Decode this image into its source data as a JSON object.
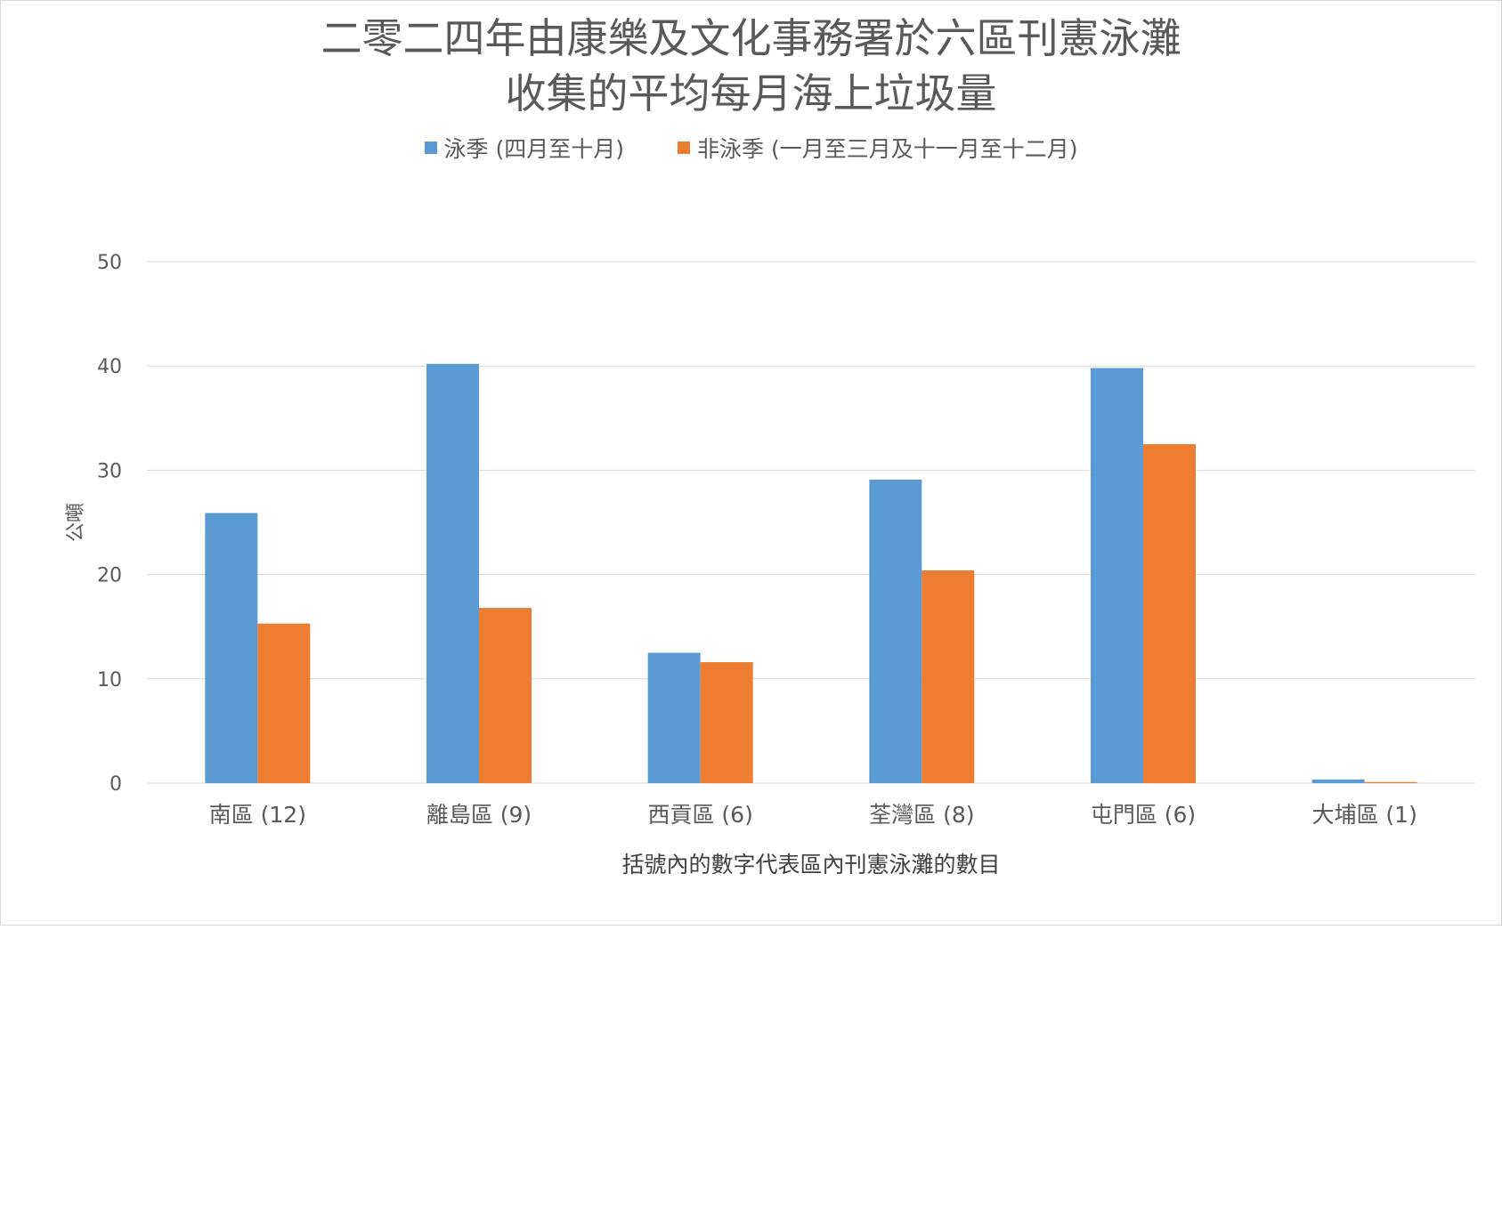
{
  "chart_data": {
    "type": "bar",
    "title": "二零二四年由康樂及文化事務署於六區刊憲泳灘收集的平均每月海上垃圾量",
    "title_lines": [
      "二零二四年由康樂及文化事務署於六區刊憲泳灘",
      "收集的平均每月海上垃圾量"
    ],
    "xlabel": "括號內的數字代表區內刊憲泳灘的數目",
    "ylabel": "公噸",
    "ylim": [
      0,
      50
    ],
    "yticks": [
      "0",
      "10",
      "20",
      "30",
      "40",
      "50"
    ],
    "grid": true,
    "legend_position": "top",
    "categories": [
      "南區 (12)",
      "離島區 (9)",
      "西貢區 (6)",
      "荃灣區 (8)",
      "屯門區 (6)",
      "大埔區 (1)"
    ],
    "series": [
      {
        "name": "泳季 (四月至十月)",
        "color": "#5b9bd5",
        "values": [
          25.9,
          40.2,
          12.5,
          29.1,
          39.8,
          0.35
        ]
      },
      {
        "name": "非泳季 (一月至三月及十一月至十二月)",
        "color": "#ed7d31",
        "values": [
          15.3,
          16.8,
          11.6,
          20.4,
          32.5,
          0.1
        ]
      }
    ]
  }
}
